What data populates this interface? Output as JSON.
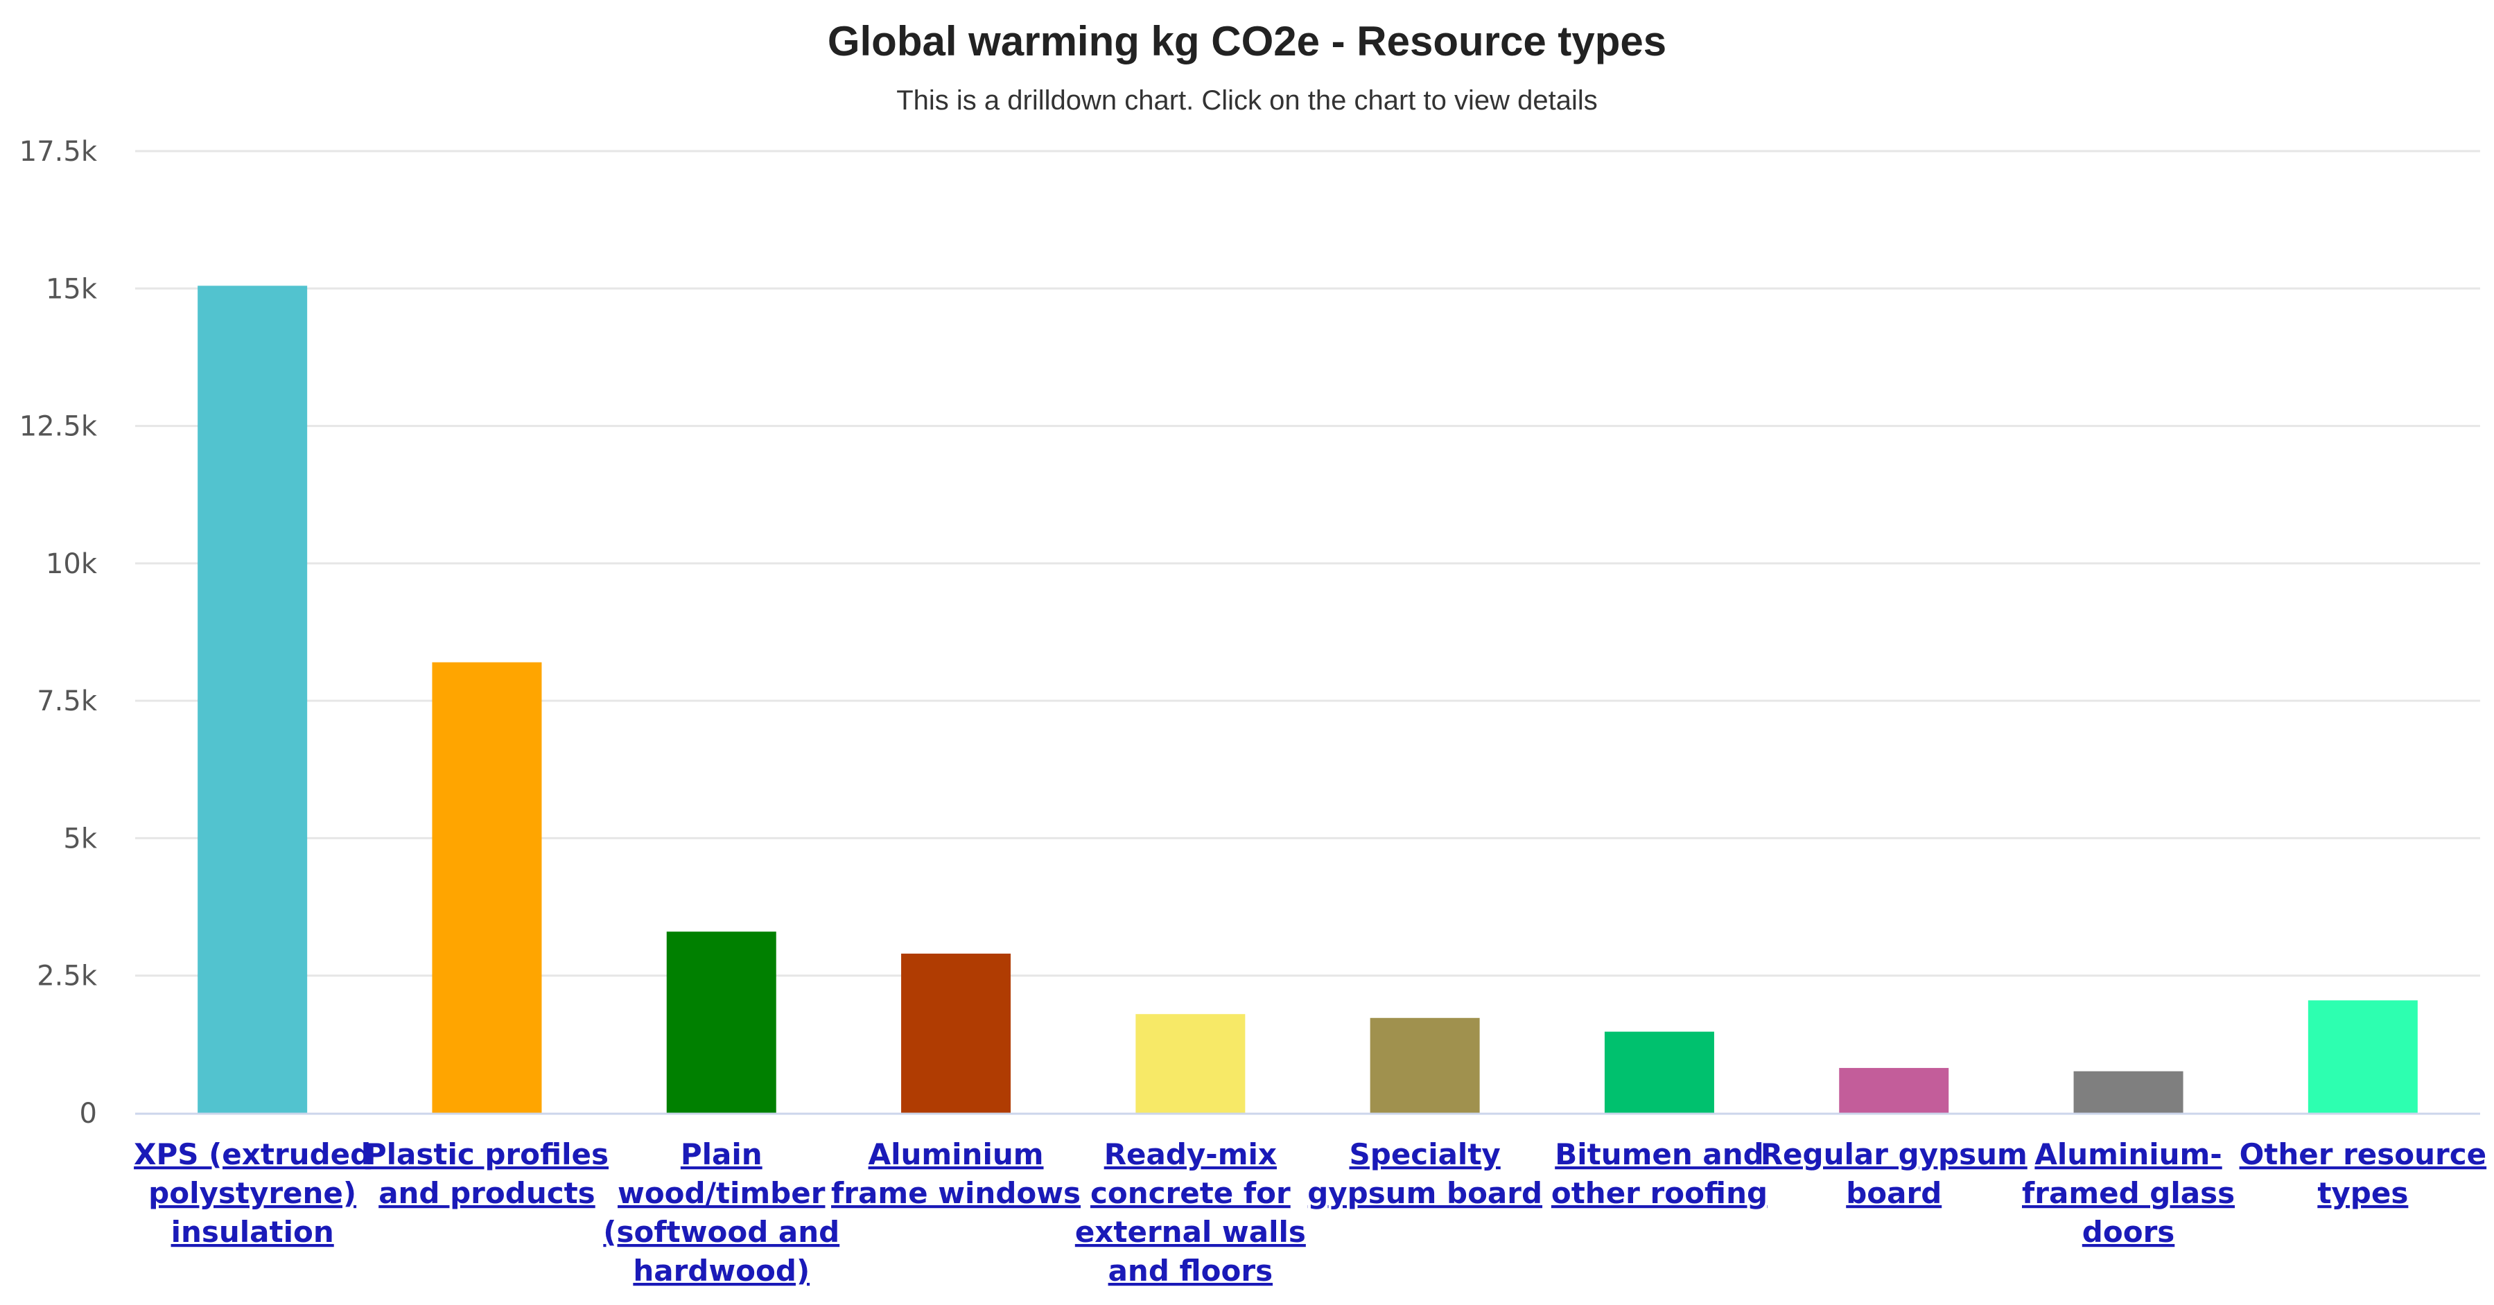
{
  "chart_data": {
    "type": "bar",
    "title": "Global warming kg CO2e - Resource types",
    "subtitle": "This is a drilldown chart. Click on the chart to view details",
    "xlabel": "",
    "ylabel": "",
    "ylim": [
      0,
      17500
    ],
    "yticks": [
      {
        "value": 0,
        "label": "0"
      },
      {
        "value": 2500,
        "label": "2.5k"
      },
      {
        "value": 5000,
        "label": "5k"
      },
      {
        "value": 7500,
        "label": "7.5k"
      },
      {
        "value": 10000,
        "label": "10k"
      },
      {
        "value": 12500,
        "label": "12.5k"
      },
      {
        "value": 15000,
        "label": "15k"
      },
      {
        "value": 17500,
        "label": "17.5k"
      }
    ],
    "grid": true,
    "legend": "none",
    "categories": [
      {
        "label": "XPS (extruded polystyrene) insulation",
        "lines": [
          "XPS (extruded",
          "polystyrene)",
          "insulation"
        ],
        "value": 15050,
        "color": "#52c3cf"
      },
      {
        "label": "Plastic profiles and products",
        "lines": [
          "Plastic profiles",
          "and products"
        ],
        "value": 8200,
        "color": "#ffa500"
      },
      {
        "label": "Plain wood/timber (softwood and hardwood)",
        "lines": [
          "Plain",
          "wood/timber",
          "(softwood and",
          "hardwood)"
        ],
        "value": 3300,
        "color": "#008000"
      },
      {
        "label": "Aluminium frame windows",
        "lines": [
          "Aluminium",
          "frame windows"
        ],
        "value": 2900,
        "color": "#b03c02"
      },
      {
        "label": "Ready-mix concrete for external walls and floors",
        "lines": [
          "Ready-mix",
          "concrete for",
          "external walls",
          "and floors"
        ],
        "value": 1800,
        "color": "#f7e967"
      },
      {
        "label": "Specialty gypsum board",
        "lines": [
          "Specialty",
          "gypsum board"
        ],
        "value": 1730,
        "color": "#a0914e"
      },
      {
        "label": "Bitumen and other roofing",
        "lines": [
          "Bitumen and",
          "other roofing"
        ],
        "value": 1480,
        "color": "#00c16e"
      },
      {
        "label": "Regular gypsum board",
        "lines": [
          "Regular gypsum",
          "board"
        ],
        "value": 820,
        "color": "#c35d9a"
      },
      {
        "label": "Aluminium-framed glass doors",
        "lines": [
          "Aluminium-",
          "framed glass",
          "doors"
        ],
        "value": 760,
        "color": "#7f7f7f"
      },
      {
        "label": "Other resource types",
        "lines": [
          "Other resource",
          "types"
        ],
        "value": 2050,
        "color": "#2dffb0"
      }
    ]
  }
}
